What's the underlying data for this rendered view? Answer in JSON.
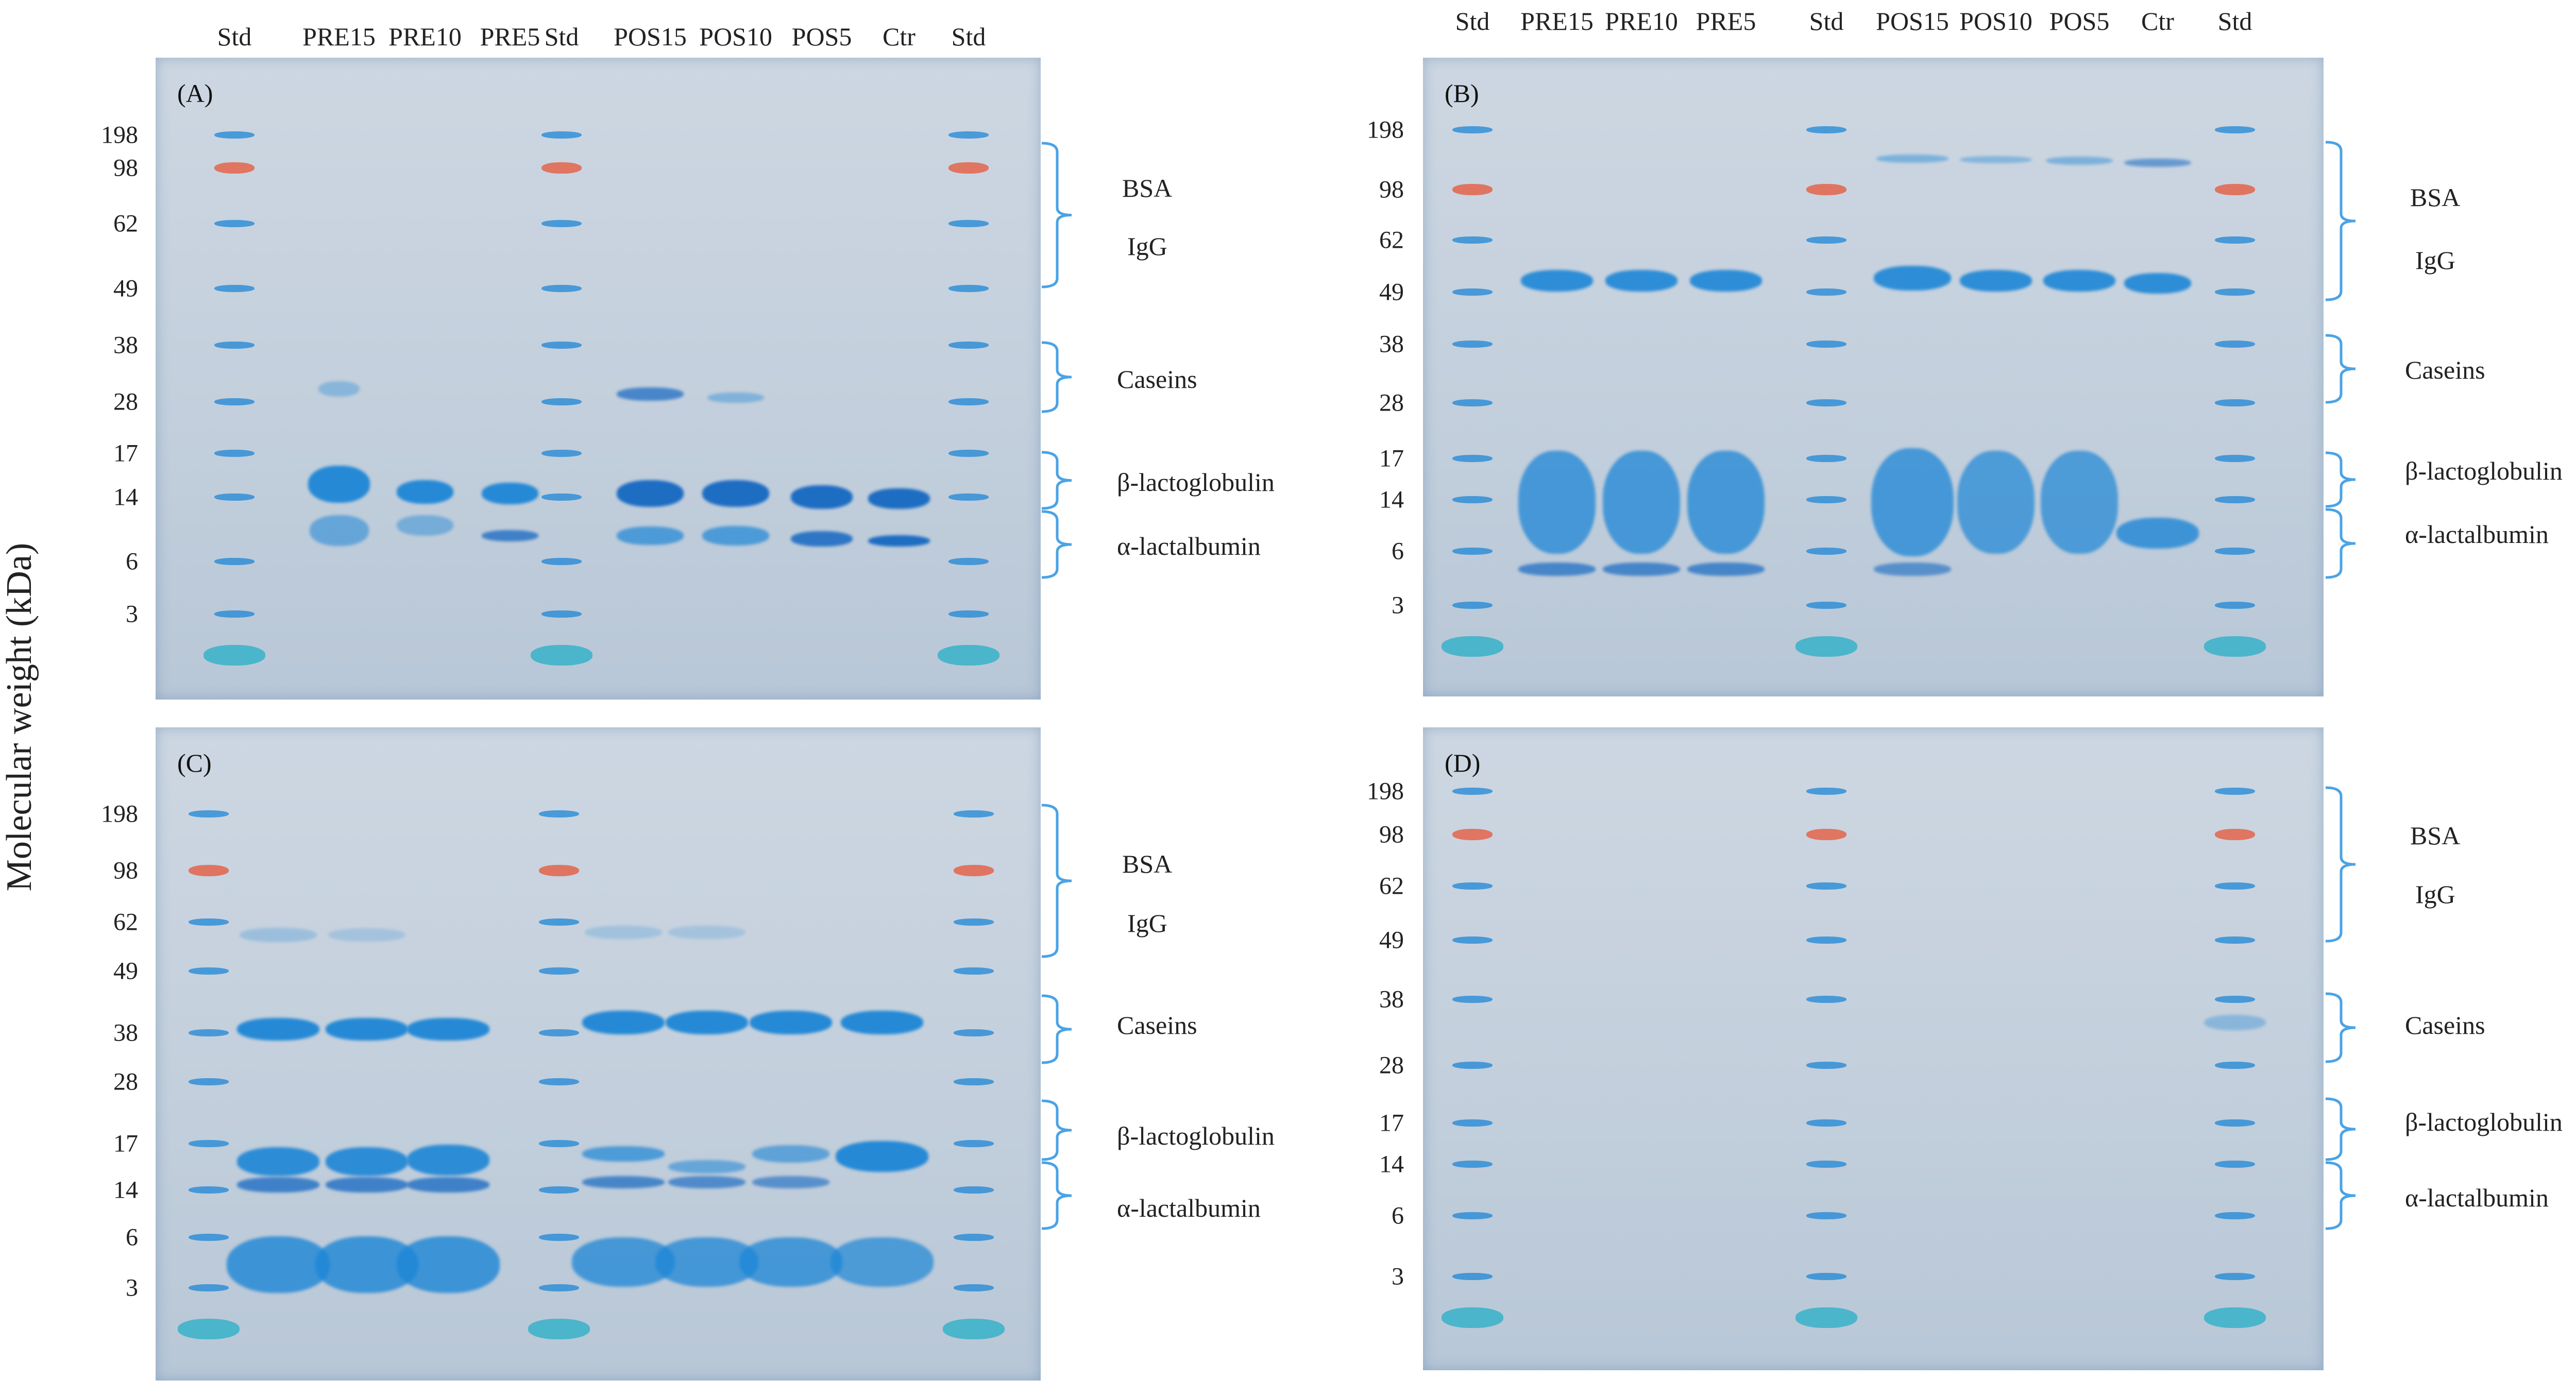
{
  "y_axis_label": "Molecular weight (kDa)",
  "panels": [
    {
      "id": "A",
      "tag": "(A)",
      "lanes": [
        "Std",
        "PRE15",
        "PRE10",
        "PRE5",
        "Std",
        "POS15",
        "POS10",
        "POS5",
        "Ctr",
        "Std"
      ],
      "mw": [
        "198",
        "98",
        "62",
        "49",
        "38",
        "28",
        "17",
        "14",
        "6",
        "3"
      ],
      "annotations": [
        "BSA",
        "IgG",
        "Caseins",
        "β-lactoglobulin",
        "α-lactalbumin"
      ]
    },
    {
      "id": "B",
      "tag": "(B)",
      "lanes": [
        "Std",
        "PRE15",
        "PRE10",
        "PRE5",
        "Std",
        "POS15",
        "POS10",
        "POS5",
        "Ctr",
        "Std"
      ],
      "mw": [
        "198",
        "98",
        "62",
        "49",
        "38",
        "28",
        "17",
        "14",
        "6",
        "3"
      ],
      "annotations": [
        "BSA",
        "IgG",
        "Caseins",
        "β-lactoglobulin",
        "α-lactalbumin"
      ]
    },
    {
      "id": "C",
      "tag": "(C)",
      "lanes": [],
      "mw": [
        "198",
        "98",
        "62",
        "49",
        "38",
        "28",
        "17",
        "14",
        "6",
        "3"
      ],
      "annotations": [
        "BSA",
        "IgG",
        "Caseins",
        "β-lactoglobulin",
        "α-lactalbumin"
      ]
    },
    {
      "id": "D",
      "tag": "(D)",
      "lanes": [],
      "mw": [
        "198",
        "98",
        "62",
        "49",
        "38",
        "28",
        "17",
        "14",
        "6",
        "3"
      ],
      "annotations": [
        "BSA",
        "IgG",
        "Caseins",
        "β-lactoglobulin",
        "α-lactalbumin"
      ]
    }
  ],
  "colors": {
    "stain": "#1d86d6",
    "stain_dark": "#1568c2",
    "marker_red": "#e0705a",
    "gel": "#c6d1dd",
    "bracket": "#4aa3e6"
  }
}
